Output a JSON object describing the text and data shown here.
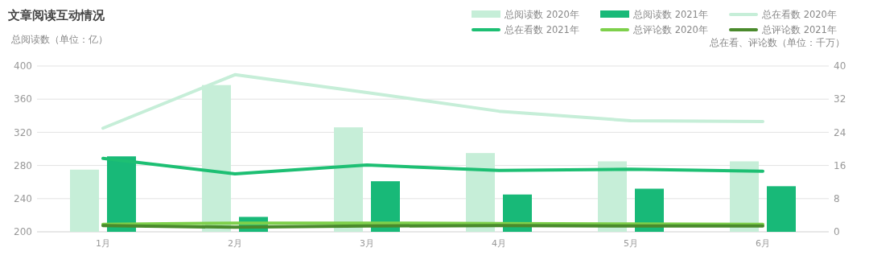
{
  "chart_data": {
    "type": "bar",
    "title": "文章阅读互动情况",
    "ylabel": "总阅读数（单位：亿）",
    "y2label": "总在看、评论数（单位：千万）",
    "categories": [
      "1月",
      "2月",
      "3月",
      "4月",
      "5月",
      "6月"
    ],
    "series": [
      {
        "name": "总阅读数 2020年",
        "color": "#c6eed8",
        "values": [
          275,
          377,
          326,
          295,
          285,
          285
        ]
      },
      {
        "name": "总阅读数 2021年",
        "color": "#18b978",
        "values": [
          291,
          218,
          261,
          245,
          252,
          255
        ]
      },
      {
        "name": "总在看数 2020年",
        "type": "line",
        "axis": "y2",
        "color": "#c6eed8",
        "values": [
          25.0,
          37.9,
          33.6,
          29.1,
          26.8,
          26.6
        ]
      },
      {
        "name": "总在看数 2021年",
        "type": "line",
        "axis": "y2",
        "color": "#1dbf73",
        "values": [
          17.7,
          14.0,
          16.1,
          14.8,
          15.1,
          14.6
        ]
      },
      {
        "name": "总评论数 2020年",
        "type": "line",
        "axis": "y2",
        "color": "#7ed04b",
        "values": [
          1.8,
          2.1,
          2.1,
          2.0,
          1.9,
          1.8
        ]
      },
      {
        "name": "总评论数 2021年",
        "type": "line",
        "axis": "y2",
        "color": "#4a8a2c",
        "values": [
          1.5,
          1.1,
          1.4,
          1.5,
          1.4,
          1.4
        ]
      }
    ],
    "ylim": [
      200,
      400
    ],
    "yticks": [
      200,
      240,
      280,
      320,
      360,
      400
    ],
    "y2lim": [
      0,
      40
    ],
    "y2ticks": [
      0,
      8,
      16,
      24,
      32,
      40
    ],
    "grid": "y",
    "legend": "top right",
    "marker": "none",
    "line_style": "solid"
  }
}
